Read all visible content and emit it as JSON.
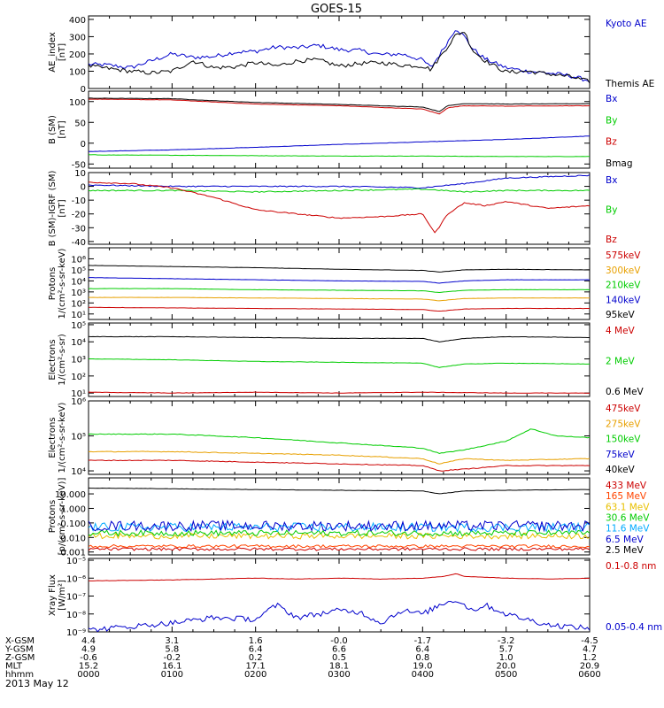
{
  "title": "GOES-15",
  "footer_date": "2013 May 12",
  "chart_data": [
    {
      "id": "ae",
      "type": "line",
      "ylabel": [
        "AE_index",
        "[nT]"
      ],
      "ylim": [
        0,
        420
      ],
      "ticks": [
        {
          "v": 0,
          "label": "0"
        },
        {
          "v": 100,
          "label": "100"
        },
        {
          "v": 200,
          "label": "200"
        },
        {
          "v": 300,
          "label": "300"
        },
        {
          "v": 400,
          "label": "400"
        }
      ],
      "series": [
        {
          "name": "Kyoto AE",
          "color": "#0000cc",
          "x": [
            0,
            0.25,
            0.5,
            0.75,
            1.0,
            1.25,
            1.5,
            1.75,
            2.0,
            2.25,
            2.5,
            2.75,
            3.0,
            3.25,
            3.5,
            3.75,
            4.0,
            4.1,
            4.25,
            4.4,
            4.5,
            4.6,
            4.75,
            5.0,
            5.25,
            5.5,
            5.75,
            6.0
          ],
          "y": [
            140,
            135,
            120,
            160,
            200,
            180,
            185,
            210,
            215,
            240,
            235,
            250,
            225,
            220,
            195,
            200,
            165,
            120,
            230,
            350,
            300,
            230,
            170,
            120,
            100,
            90,
            75,
            45
          ]
        },
        {
          "name": "Themis AE",
          "color": "#000000",
          "x": [
            0,
            0.25,
            0.5,
            0.75,
            1.0,
            1.25,
            1.5,
            1.75,
            2.0,
            2.25,
            2.5,
            2.75,
            3.0,
            3.25,
            3.5,
            3.75,
            4.0,
            4.1,
            4.25,
            4.4,
            4.5,
            4.6,
            4.75,
            5.0,
            5.25,
            5.5,
            5.75,
            6.0
          ],
          "y": [
            130,
            115,
            100,
            90,
            100,
            160,
            120,
            125,
            150,
            130,
            160,
            165,
            130,
            145,
            150,
            135,
            130,
            110,
            210,
            310,
            330,
            220,
            160,
            95,
            100,
            85,
            70,
            40
          ]
        }
      ]
    },
    {
      "id": "b_sm",
      "type": "line",
      "ylabel": [
        "B (SM)",
        "[nT]"
      ],
      "ylim": [
        -60,
        125
      ],
      "ticks": [
        {
          "v": -50,
          "label": "-50"
        },
        {
          "v": 0,
          "label": "0"
        },
        {
          "v": 50,
          "label": "50"
        },
        {
          "v": 100,
          "label": "100"
        }
      ],
      "series": [
        {
          "name": "Bx",
          "color": "#0000cc",
          "x": [
            0,
            1,
            2,
            3,
            4,
            5,
            6
          ],
          "y": [
            -20,
            -16,
            -10,
            -3,
            3,
            9,
            17
          ]
        },
        {
          "name": "By",
          "color": "#00cc00",
          "x": [
            0,
            1,
            2,
            3,
            4,
            5,
            6
          ],
          "y": [
            -28,
            -29,
            -30,
            -31,
            -31,
            -32,
            -32
          ]
        },
        {
          "name": "Bz",
          "color": "#cc0000",
          "x": [
            0,
            1,
            1.5,
            2,
            3,
            4,
            4.2,
            4.3,
            4.5,
            5,
            6
          ],
          "y": [
            106,
            104,
            99,
            94,
            90,
            82,
            70,
            85,
            90,
            89,
            90
          ]
        },
        {
          "name": "Bmag",
          "color": "#000000",
          "x": [
            0,
            1,
            1.5,
            2,
            3,
            4,
            4.2,
            4.3,
            4.5,
            5,
            6
          ],
          "y": [
            108,
            107,
            102,
            98,
            93,
            87,
            76,
            90,
            95,
            94,
            95
          ]
        }
      ]
    },
    {
      "id": "b_igrf",
      "type": "line",
      "ylabel": [
        "B (SM)-IGRF (SM)",
        "[nT]"
      ],
      "ylim": [
        -42,
        10
      ],
      "ticks": [
        {
          "v": -40,
          "label": "-40"
        },
        {
          "v": -30,
          "label": "-30"
        },
        {
          "v": -20,
          "label": "-20"
        },
        {
          "v": -10,
          "label": "-10"
        },
        {
          "v": 0,
          "label": "0"
        },
        {
          "v": 10,
          "label": "10"
        }
      ],
      "series": [
        {
          "name": "Bx",
          "color": "#0000cc",
          "x": [
            0,
            1,
            2,
            3,
            4,
            4.5,
            5,
            6
          ],
          "y": [
            1,
            0,
            0,
            0,
            -1,
            2,
            6,
            8
          ]
        },
        {
          "name": "By",
          "color": "#00cc00",
          "x": [
            0,
            1,
            2,
            3,
            4,
            4.5,
            5,
            6
          ],
          "y": [
            -3,
            -3,
            -4,
            -3,
            -2,
            -4,
            -3,
            -3
          ]
        },
        {
          "name": "Bz",
          "color": "#cc0000",
          "x": [
            0,
            0.5,
            1,
            1.5,
            2,
            2.5,
            3,
            3.5,
            4,
            4.15,
            4.3,
            4.5,
            4.75,
            5,
            5.5,
            6
          ],
          "y": [
            3,
            2,
            -1,
            -8,
            -17,
            -20,
            -23,
            -22,
            -20,
            -34,
            -20,
            -12,
            -14,
            -11,
            -16,
            -14
          ]
        }
      ]
    },
    {
      "id": "protons_keV",
      "type": "line",
      "log": true,
      "ylabel": [
        "Protons",
        "1/(cm²-s-sr-keV)"
      ],
      "ylim": [
        0.5,
        7
      ],
      "ticks": [
        {
          "v": 1,
          "label": "10¹"
        },
        {
          "v": 2,
          "label": "10²"
        },
        {
          "v": 3,
          "label": "10³"
        },
        {
          "v": 4,
          "label": "10⁴"
        },
        {
          "v": 5,
          "label": "10⁵"
        },
        {
          "v": 6,
          "label": "10⁶"
        }
      ],
      "series": [
        {
          "name": "575keV",
          "color": "#cc0000",
          "x": [
            0,
            1,
            2,
            3,
            4,
            4.2,
            4.5,
            5,
            6
          ],
          "y": [
            1.6,
            1.55,
            1.5,
            1.45,
            1.4,
            1.25,
            1.45,
            1.5,
            1.5
          ]
        },
        {
          "name": "300keV",
          "color": "#e8a000",
          "x": [
            0,
            1,
            2,
            3,
            4,
            4.2,
            4.5,
            5,
            6
          ],
          "y": [
            2.5,
            2.5,
            2.45,
            2.4,
            2.35,
            2.2,
            2.4,
            2.45,
            2.45
          ]
        },
        {
          "name": "210keV",
          "color": "#00cc00",
          "x": [
            0,
            1,
            2,
            3,
            4,
            4.2,
            4.5,
            5,
            6
          ],
          "y": [
            3.3,
            3.3,
            3.2,
            3.15,
            3.1,
            2.95,
            3.15,
            3.2,
            3.2
          ]
        },
        {
          "name": "140keV",
          "color": "#0000cc",
          "x": [
            0,
            1,
            2,
            3,
            4,
            4.2,
            4.5,
            5,
            6
          ],
          "y": [
            4.3,
            4.2,
            4.1,
            4.0,
            3.95,
            3.8,
            4.0,
            4.1,
            4.1
          ]
        },
        {
          "name": "95keV",
          "color": "#000000",
          "x": [
            0,
            1,
            2,
            3,
            4,
            4.2,
            4.5,
            5,
            6
          ],
          "y": [
            5.4,
            5.3,
            5.2,
            5.05,
            4.95,
            4.8,
            5.0,
            5.05,
            5.0
          ]
        }
      ]
    },
    {
      "id": "electrons_MeV",
      "type": "line",
      "log": true,
      "ylabel": [
        "Electrons",
        "1/(cm²-s-sr)"
      ],
      "ylim": [
        0.8,
        5.1
      ],
      "ticks": [
        {
          "v": 1,
          "label": "10¹"
        },
        {
          "v": 2,
          "label": "10²"
        },
        {
          "v": 3,
          "label": "10³"
        },
        {
          "v": 4,
          "label": "10⁴"
        },
        {
          "v": 5,
          "label": "10⁵"
        }
      ],
      "series": [
        {
          "name": "4 MeV",
          "color": "#cc0000",
          "x": [
            0,
            1,
            2,
            3,
            4,
            5,
            6
          ],
          "y": [
            1.05,
            1.0,
            1.05,
            1.0,
            1.05,
            1.0,
            1.0
          ]
        },
        {
          "name": "2 MeV",
          "color": "#00cc00",
          "x": [
            0,
            1,
            2,
            3,
            4,
            4.2,
            4.5,
            5,
            6
          ],
          "y": [
            3.0,
            2.95,
            2.85,
            2.8,
            2.75,
            2.5,
            2.7,
            2.75,
            2.7
          ]
        },
        {
          "name": "0.6 MeV",
          "color": "#000000",
          "x": [
            0,
            1,
            2,
            3,
            4,
            4.2,
            4.5,
            5,
            6
          ],
          "y": [
            4.3,
            4.3,
            4.25,
            4.2,
            4.2,
            4.0,
            4.2,
            4.3,
            4.25
          ]
        }
      ]
    },
    {
      "id": "electrons_keV",
      "type": "line",
      "log": true,
      "ylabel": [
        "Electrons",
        "1/(cm²-s-sr-keV)"
      ],
      "ylim": [
        3.9,
        6.0
      ],
      "ticks": [
        {
          "v": 4,
          "label": "10⁴"
        },
        {
          "v": 5,
          "label": "10⁵"
        },
        {
          "v": 6,
          "label": "10⁶"
        }
      ],
      "series": [
        {
          "name": "475keV",
          "color": "#cc0000",
          "x": [
            0,
            1,
            2,
            3,
            4,
            4.2,
            4.5,
            5,
            6
          ],
          "y": [
            4.3,
            4.3,
            4.25,
            4.2,
            4.15,
            4.0,
            4.05,
            4.15,
            4.15
          ]
        },
        {
          "name": "275keV",
          "color": "#e8a000",
          "x": [
            0,
            1,
            2,
            3,
            4,
            4.2,
            4.5,
            5,
            6
          ],
          "y": [
            4.55,
            4.55,
            4.5,
            4.45,
            4.35,
            4.2,
            4.35,
            4.3,
            4.35
          ]
        },
        {
          "name": "150keV",
          "color": "#00cc00",
          "x": [
            0,
            1,
            2,
            3,
            4,
            4.2,
            4.5,
            5,
            5.3,
            5.6,
            6
          ],
          "y": [
            5.05,
            5.05,
            4.95,
            4.8,
            4.65,
            4.5,
            4.6,
            4.85,
            5.2,
            5.0,
            4.95
          ]
        },
        {
          "name": "75keV",
          "color": "#0000cc",
          "x": [
            0,
            2,
            4,
            6
          ],
          "y": [
            6.4,
            6.4,
            6.4,
            6.4
          ]
        },
        {
          "name": "40keV",
          "color": "#000000",
          "x": [
            0,
            2,
            4,
            6
          ],
          "y": [
            6.6,
            6.6,
            6.6,
            6.6
          ]
        }
      ]
    },
    {
      "id": "protons_MeV",
      "type": "line",
      "log": true,
      "ylabel": [
        "Protons",
        "[p/(cm²-s-sr-keV)]"
      ],
      "ylim": [
        -3.2,
        2.1
      ],
      "ticks": [
        {
          "v": -3,
          "label": "0.001"
        },
        {
          "v": -2,
          "label": "0.010"
        },
        {
          "v": -1,
          "label": "0.100"
        },
        {
          "v": 0,
          "label": "1.000"
        },
        {
          "v": 1,
          "label": "10.000"
        }
      ],
      "series": [
        {
          "name": "433 MeV",
          "color": "#cc0000",
          "x": [
            0,
            6
          ],
          "y": [
            -2.8,
            -2.8
          ],
          "noise": 0.1
        },
        {
          "name": "165 MeV",
          "color": "#ff4400",
          "x": [
            0,
            6
          ],
          "y": [
            -2.6,
            -2.6
          ],
          "noise": 0.1
        },
        {
          "name": "63.1 MeV",
          "color": "#e8c000",
          "x": [
            0,
            6
          ],
          "y": [
            -1.9,
            -1.9
          ],
          "noise": 0.2
        },
        {
          "name": "30.6 MeV",
          "color": "#00cc00",
          "x": [
            0,
            6
          ],
          "y": [
            -1.7,
            -1.7
          ],
          "noise": 0.2
        },
        {
          "name": "11.6 MeV",
          "color": "#00aaff",
          "x": [
            0,
            6
          ],
          "y": [
            -1.3,
            -1.3
          ],
          "noise": 0.3
        },
        {
          "name": "6.5 MeV",
          "color": "#0000cc",
          "x": [
            0,
            6
          ],
          "y": [
            -1.2,
            -1.2
          ],
          "noise": 0.35
        },
        {
          "name": "2.5 MeV",
          "color": "#000000",
          "x": [
            0,
            1,
            2,
            3,
            4,
            4.2,
            4.5,
            5,
            6
          ],
          "y": [
            1.4,
            1.35,
            1.3,
            1.25,
            1.2,
            1.0,
            1.2,
            1.25,
            1.3
          ]
        }
      ]
    },
    {
      "id": "xray",
      "type": "line",
      "log": true,
      "ylabel": [
        "Xray Flux",
        "[W/m²]"
      ],
      "ylim": [
        -9,
        -4.9
      ],
      "ticks": [
        {
          "v": -9,
          "label": "10⁻⁹"
        },
        {
          "v": -8,
          "label": "10⁻⁸"
        },
        {
          "v": -7,
          "label": "10⁻⁷"
        },
        {
          "v": -6,
          "label": "10⁻⁶"
        },
        {
          "v": -5,
          "label": "10⁻⁵"
        }
      ],
      "series": [
        {
          "name": "0.1-0.8 nm",
          "color": "#cc0000",
          "x": [
            0,
            1,
            1.5,
            2,
            2.5,
            3,
            3.5,
            4,
            4.25,
            4.4,
            4.5,
            5,
            5.5,
            6
          ],
          "y": [
            -6.15,
            -6.1,
            -6.05,
            -6.0,
            -6.05,
            -6.0,
            -6.05,
            -6.0,
            -5.9,
            -5.75,
            -5.9,
            -6.0,
            -6.05,
            -6.0
          ]
        },
        {
          "name": "0.05-0.4 nm",
          "color": "#0000cc",
          "x": [
            0,
            0.5,
            1,
            1.5,
            2,
            2.25,
            2.5,
            3,
            3.25,
            3.5,
            3.75,
            4,
            4.25,
            4.4,
            4.6,
            4.75,
            5,
            5.25,
            5.5,
            6
          ],
          "y": [
            -8.9,
            -8.7,
            -8.5,
            -8.2,
            -8.3,
            -7.5,
            -8.2,
            -7.8,
            -7.9,
            -8.5,
            -7.8,
            -8.0,
            -7.4,
            -7.2,
            -7.8,
            -7.5,
            -8.0,
            -8.3,
            -8.6,
            -8.8
          ],
          "noise": 0.15
        }
      ]
    }
  ],
  "orbit_table": {
    "row_labels": [
      "X-GSM",
      "Y-GSM",
      "Z-GSM",
      "MLT",
      "hhmm"
    ],
    "rows": [
      [
        "4.4",
        "3.1",
        "1.6",
        "-0.0",
        "-1.7",
        "-3.2",
        "-4.5"
      ],
      [
        "4.9",
        "5.8",
        "6.4",
        "6.6",
        "6.4",
        "5.7",
        "4.7"
      ],
      [
        "-0.6",
        "-0.2",
        "0.2",
        "0.5",
        "0.8",
        "1.0",
        "1.2"
      ],
      [
        "15.2",
        "16.1",
        "17.1",
        "18.1",
        "19.0",
        "20.0",
        "20.9"
      ],
      [
        "0000",
        "0100",
        "0200",
        "0300",
        "0400",
        "0500",
        "0600"
      ]
    ]
  }
}
